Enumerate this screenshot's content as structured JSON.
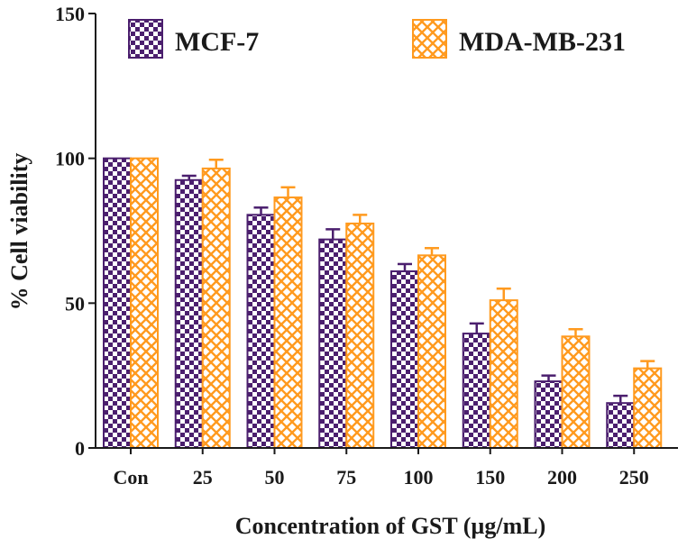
{
  "chart_data": {
    "type": "bar",
    "title": "",
    "xlabel": "Concentration of GST (µg/mL)",
    "ylabel": "% Cell viability",
    "ylim": [
      0,
      150
    ],
    "yticks": [
      "0",
      "50",
      "100",
      "150"
    ],
    "categories": [
      "Con",
      "25",
      "50",
      "75",
      "100",
      "150",
      "200",
      "250"
    ],
    "series": [
      {
        "name": "MCF-7",
        "color": "#4b1f6e",
        "pattern": "checkerboard",
        "values": [
          100,
          92.5,
          80.5,
          72,
          61,
          39.5,
          23,
          15.5
        ],
        "errors": [
          0,
          1.5,
          2.5,
          3.5,
          2.5,
          3.5,
          2,
          2.5
        ]
      },
      {
        "name": "MDA-MB-231",
        "color": "#ff9a1f",
        "pattern": "crosshatch",
        "values": [
          100,
          96.5,
          86.5,
          77.5,
          66.5,
          51,
          38.5,
          27.5
        ],
        "errors": [
          0,
          3,
          3.5,
          3,
          2.5,
          4,
          2.5,
          2.5
        ]
      }
    ],
    "legend_position": "top"
  }
}
